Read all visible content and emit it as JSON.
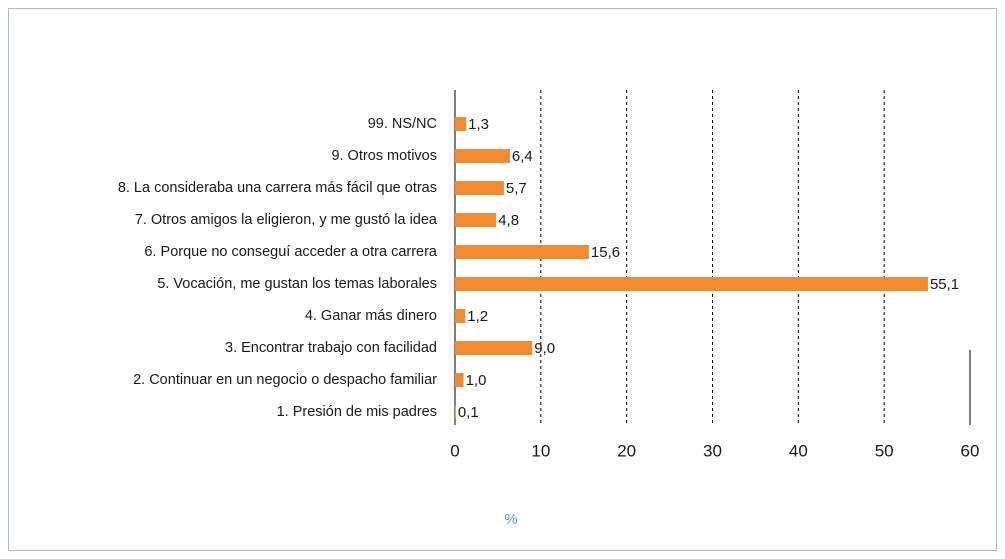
{
  "chart_data": {
    "type": "bar",
    "orientation": "horizontal",
    "categories": [
      "99. NS/NC",
      "9. Otros motivos",
      "8. La consideraba una carrera más fácil que otras",
      "7. Otros amigos la eligieron, y me gustó la idea",
      "6. Porque no conseguí acceder a otra carrera",
      "5. Vocación, me gustan los temas laborales",
      "4. Ganar más dinero",
      "3. Encontrar trabajo con facilidad",
      "2. Continuar en un negocio o despacho familiar",
      "1. Presión de mis padres"
    ],
    "values": [
      1.3,
      6.4,
      5.7,
      4.8,
      15.6,
      55.1,
      1.2,
      9.0,
      1.0,
      0.1
    ],
    "value_labels": [
      "1,3",
      "6,4",
      "5,7",
      "4,8",
      "15,6",
      "55,1",
      "1,2",
      "9,0",
      "1,0",
      "0,1"
    ],
    "color": "#f28a30",
    "xlabel": "%",
    "xlim": [
      0,
      60
    ],
    "xticks": [
      0,
      10,
      20,
      30,
      40,
      50,
      60
    ],
    "grid": true
  }
}
